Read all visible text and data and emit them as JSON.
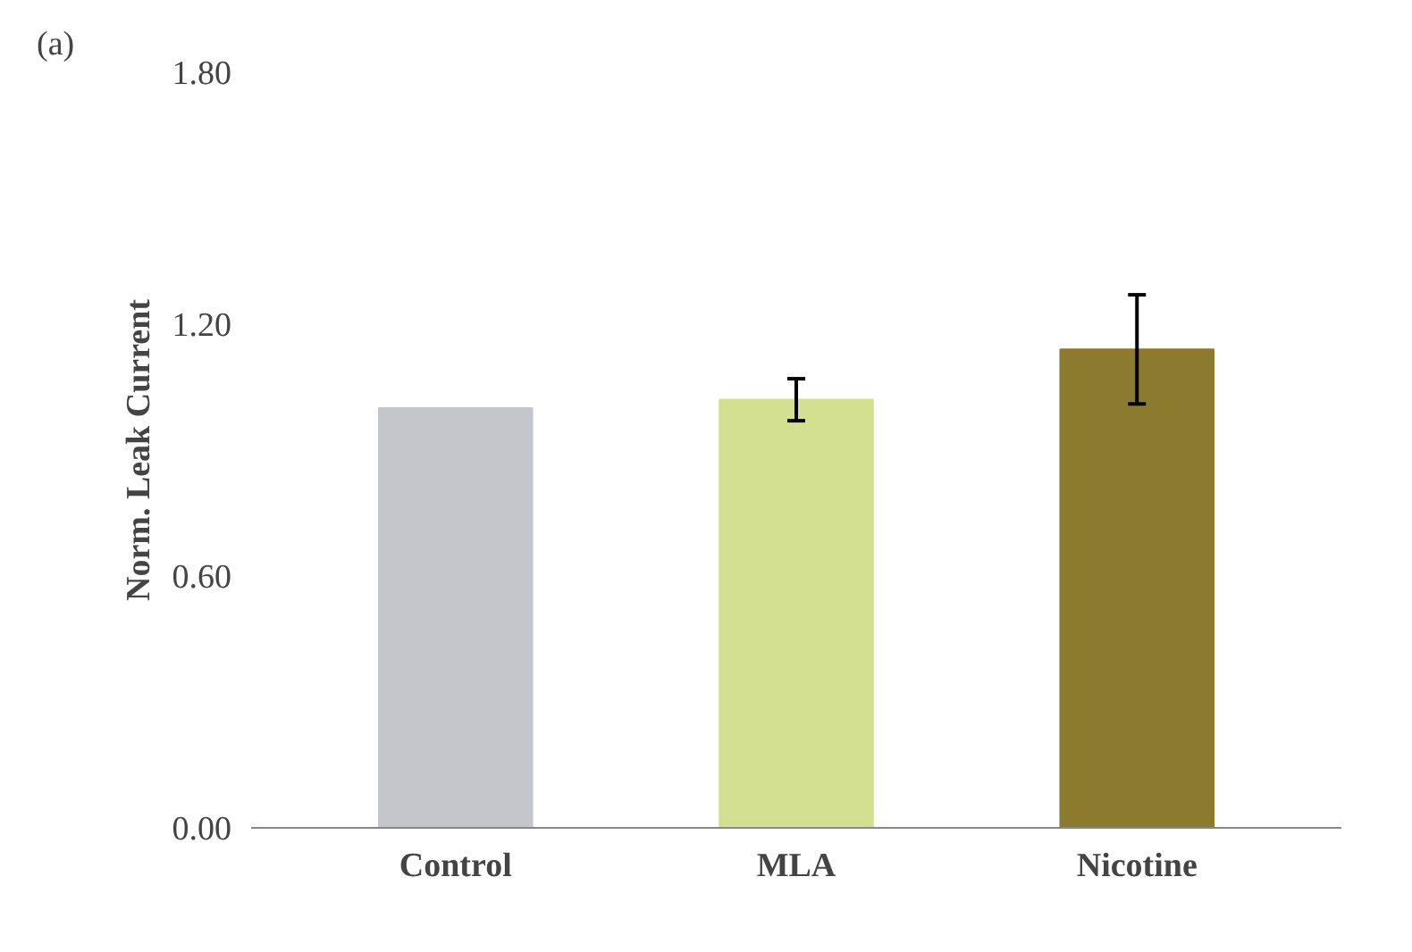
{
  "chart_data": {
    "type": "bar",
    "ylabel": "Norm. Leak Current",
    "annotations": [
      "(a)"
    ],
    "categories": [
      "Control",
      "MLA",
      "Nicotine"
    ],
    "values": [
      1.0,
      1.02,
      1.14
    ],
    "colors": [
      "#c4c6cc",
      "#d3e08f",
      "#8c7a2e"
    ],
    "errors": [
      null,
      0.05,
      0.13
    ],
    "ylim": [
      0,
      1.8
    ],
    "yticks": [
      {
        "value": 0,
        "label": "0.00"
      },
      {
        "value": 0.6,
        "label": "0.60"
      },
      {
        "value": 1.2,
        "label": "1.20"
      },
      {
        "value": 1.8,
        "label": "1.80"
      }
    ],
    "grid": false
  }
}
